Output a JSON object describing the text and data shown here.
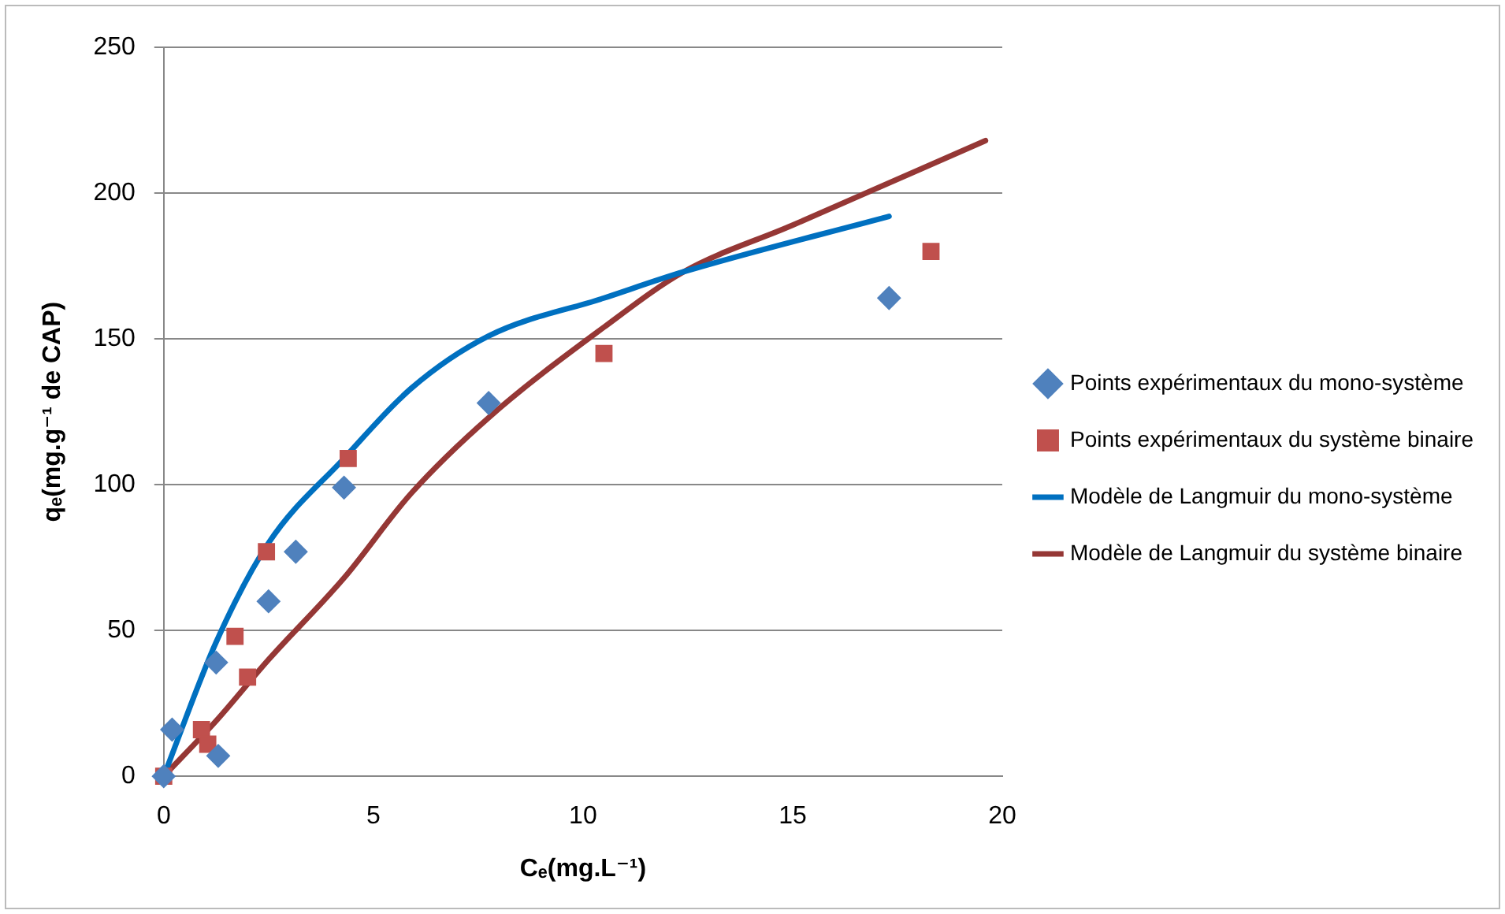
{
  "chart_data": {
    "type": "scatter",
    "xlabel": "Cₑ(mg.L⁻¹)",
    "ylabel": "qₑ(mg.g⁻¹ de CAP)",
    "xlim": [
      0,
      20
    ],
    "xticks": [
      0,
      5,
      10,
      15,
      20
    ],
    "ylim": [
      0,
      250
    ],
    "yticks": [
      0,
      50,
      100,
      150,
      200,
      250
    ],
    "grid": "y",
    "legend": "right",
    "series": [
      {
        "name": "Points expérimentaux du mono-système",
        "type": "scatter",
        "marker": "diamond",
        "color": "#4f81bd",
        "x": [
          0,
          0.2,
          1.25,
          1.3,
          2.5,
          3.15,
          4.3,
          7.75,
          17.3
        ],
        "values": [
          0,
          16,
          39,
          7,
          60,
          77,
          99,
          128,
          164
        ]
      },
      {
        "name": "Points expérimentaux du système binaire",
        "type": "scatter",
        "marker": "square",
        "color": "#c0504d",
        "x": [
          0,
          0.9,
          1.05,
          1.7,
          2.0,
          2.45,
          4.4,
          10.5,
          18.3
        ],
        "values": [
          0,
          16,
          11,
          48,
          34,
          77,
          109,
          145,
          180
        ]
      },
      {
        "name": "Modèle de Langmuir du mono-système",
        "type": "line",
        "marker": "none",
        "color": "#0070c0",
        "x": [
          0,
          1.25,
          2.5,
          4.3,
          5.9,
          7.75,
          10.5,
          12.4,
          17.3
        ],
        "values": [
          0,
          46,
          80,
          109,
          133,
          151,
          164,
          173,
          192
        ]
      },
      {
        "name": "Modèle de Langmuir du système binaire",
        "type": "line",
        "marker": "none",
        "color": "#953735",
        "x": [
          0,
          1.25,
          2.5,
          4.3,
          5.9,
          7.75,
          10.5,
          12.4,
          15,
          19.6
        ],
        "values": [
          0,
          19,
          40,
          68,
          97,
          123,
          154,
          173,
          189,
          218
        ]
      }
    ]
  }
}
